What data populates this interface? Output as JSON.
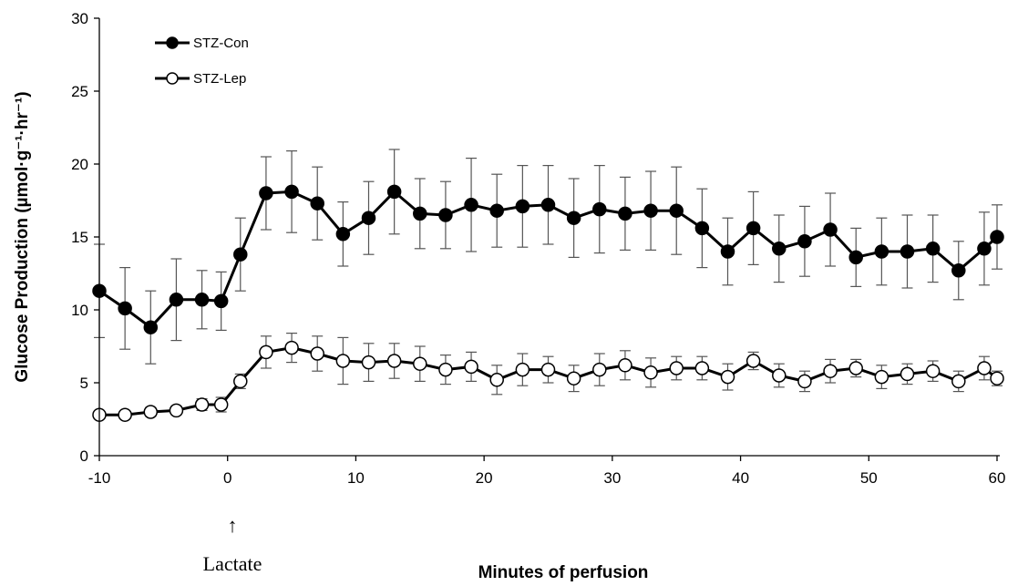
{
  "chart_data": {
    "type": "line",
    "xlabel": "Minutes of perfusion",
    "ylabel": "Glucose Production (µmol·g⁻¹·hr⁻¹)",
    "xlim": [
      -10,
      60
    ],
    "ylim": [
      0,
      30
    ],
    "x_ticks": [
      "-10",
      "0",
      "10",
      "20",
      "30",
      "40",
      "50",
      "60"
    ],
    "y_ticks": [
      "0",
      "5",
      "10",
      "15",
      "20",
      "25",
      "30"
    ],
    "grid": false,
    "legend_position": "top-left",
    "annotation": {
      "label": "Lactate",
      "x": 0,
      "arrow": "↑"
    },
    "x": [
      -10,
      -8,
      -6,
      -4,
      -2,
      -0.5,
      1,
      3,
      5,
      7,
      9,
      11,
      13,
      15,
      17,
      19,
      21,
      23,
      25,
      27,
      29,
      31,
      33,
      35,
      37,
      39,
      41,
      43,
      45,
      47,
      49,
      51,
      53,
      55,
      57,
      59,
      60
    ],
    "series": [
      {
        "name": "STZ-Con",
        "marker": "filled-circle",
        "color": "#000000",
        "values": [
          11.3,
          10.1,
          8.8,
          10.7,
          10.7,
          10.6,
          13.8,
          18.0,
          18.1,
          17.3,
          15.2,
          16.3,
          18.1,
          16.6,
          16.5,
          17.2,
          16.8,
          17.1,
          17.2,
          16.3,
          16.9,
          16.6,
          16.8,
          16.8,
          15.6,
          14.0,
          15.6,
          14.2,
          14.7,
          15.5,
          13.6,
          14.0,
          14.0,
          14.2,
          12.7,
          14.2,
          15.0
        ],
        "errors": [
          3.2,
          2.8,
          2.5,
          2.8,
          2.0,
          2.0,
          2.5,
          2.5,
          2.8,
          2.5,
          2.2,
          2.5,
          2.9,
          2.4,
          2.3,
          3.2,
          2.5,
          2.8,
          2.7,
          2.7,
          3.0,
          2.5,
          2.7,
          3.0,
          2.7,
          2.3,
          2.5,
          2.3,
          2.4,
          2.5,
          2.0,
          2.3,
          2.5,
          2.3,
          2.0,
          2.5,
          2.2
        ]
      },
      {
        "name": "STZ-Lep",
        "marker": "open-circle",
        "color": "#000000",
        "values": [
          2.8,
          2.8,
          3.0,
          3.1,
          3.5,
          3.5,
          5.1,
          7.1,
          7.4,
          7.0,
          6.5,
          6.4,
          6.5,
          6.3,
          5.9,
          6.1,
          5.2,
          5.9,
          5.9,
          5.3,
          5.9,
          6.2,
          5.7,
          6.0,
          6.0,
          5.4,
          6.5,
          5.5,
          5.1,
          5.8,
          6.0,
          5.4,
          5.6,
          5.8,
          5.1,
          6.0,
          5.3
        ],
        "errors": [
          0.2,
          0.2,
          0.3,
          0.3,
          0.4,
          0.5,
          0.5,
          1.1,
          1.0,
          1.2,
          1.6,
          1.3,
          1.2,
          1.2,
          1.0,
          1.0,
          1.0,
          1.1,
          0.9,
          0.9,
          1.1,
          1.0,
          1.0,
          0.8,
          0.8,
          0.9,
          0.6,
          0.8,
          0.7,
          0.8,
          0.6,
          0.8,
          0.7,
          0.7,
          0.7,
          0.8,
          0.5
        ]
      }
    ]
  }
}
